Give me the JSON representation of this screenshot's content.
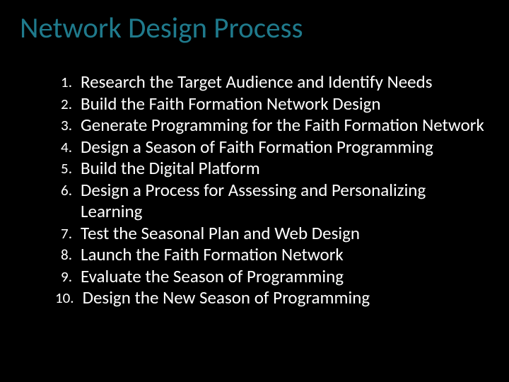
{
  "title": "Network Design Process",
  "title_color": "#1f7a8c",
  "background_color": "#000000",
  "text_color": "#ffffff",
  "title_fontsize": 41,
  "number_fontsize": 21,
  "item_fontsize": 25,
  "items": [
    {
      "n": "1.",
      "text": "Research the Target Audience and Identify Needs"
    },
    {
      "n": "2.",
      "text": "Build the Faith Formation Network Design"
    },
    {
      "n": "3.",
      "text": "Generate Programming for the Faith Formation Network"
    },
    {
      "n": "4.",
      "text": "Design a Season of Faith Formation Programming"
    },
    {
      "n": "5.",
      "text": "Build the Digital Platform"
    },
    {
      "n": "6.",
      "text": "Design a Process for Assessing and Personalizing Learning"
    },
    {
      "n": "7.",
      "text": "Test the Seasonal Plan and Web Design"
    },
    {
      "n": "8.",
      "text": "Launch the Faith Formation Network"
    },
    {
      "n": "9.",
      "text": "Evaluate the Season of Programming"
    },
    {
      "n": "10.",
      "text": "Design the New Season of Programming"
    }
  ]
}
